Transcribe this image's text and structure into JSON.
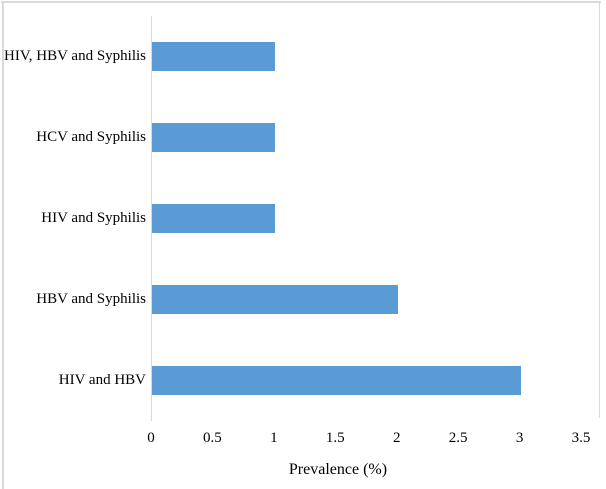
{
  "figure": {
    "background": "#ffffff",
    "border_color": "#d9d9d9"
  },
  "chart_data": {
    "type": "bar",
    "orientation": "horizontal",
    "title": "",
    "categories": [
      "HIV, HBV and Syphilis",
      "HCV and Syphilis",
      "HIV and Syphilis",
      "HBV and Syphilis",
      "HIV and HBV"
    ],
    "values": [
      1,
      1,
      1,
      2,
      3
    ],
    "xlabel": "Prevalence (%)",
    "ylabel": "",
    "xlim": [
      0,
      3.5
    ],
    "xticks": [
      0,
      0.5,
      1,
      1.5,
      2,
      2.5,
      3,
      3.5
    ],
    "xtick_labels": [
      "0",
      "0.5",
      "1",
      "1.5",
      "2",
      "2.5",
      "3",
      "3.5"
    ],
    "grid": false,
    "legend": false,
    "bar_color": "#5b9bd5",
    "axis_line_color": "#d9d9d9",
    "text_color": "#000000"
  }
}
